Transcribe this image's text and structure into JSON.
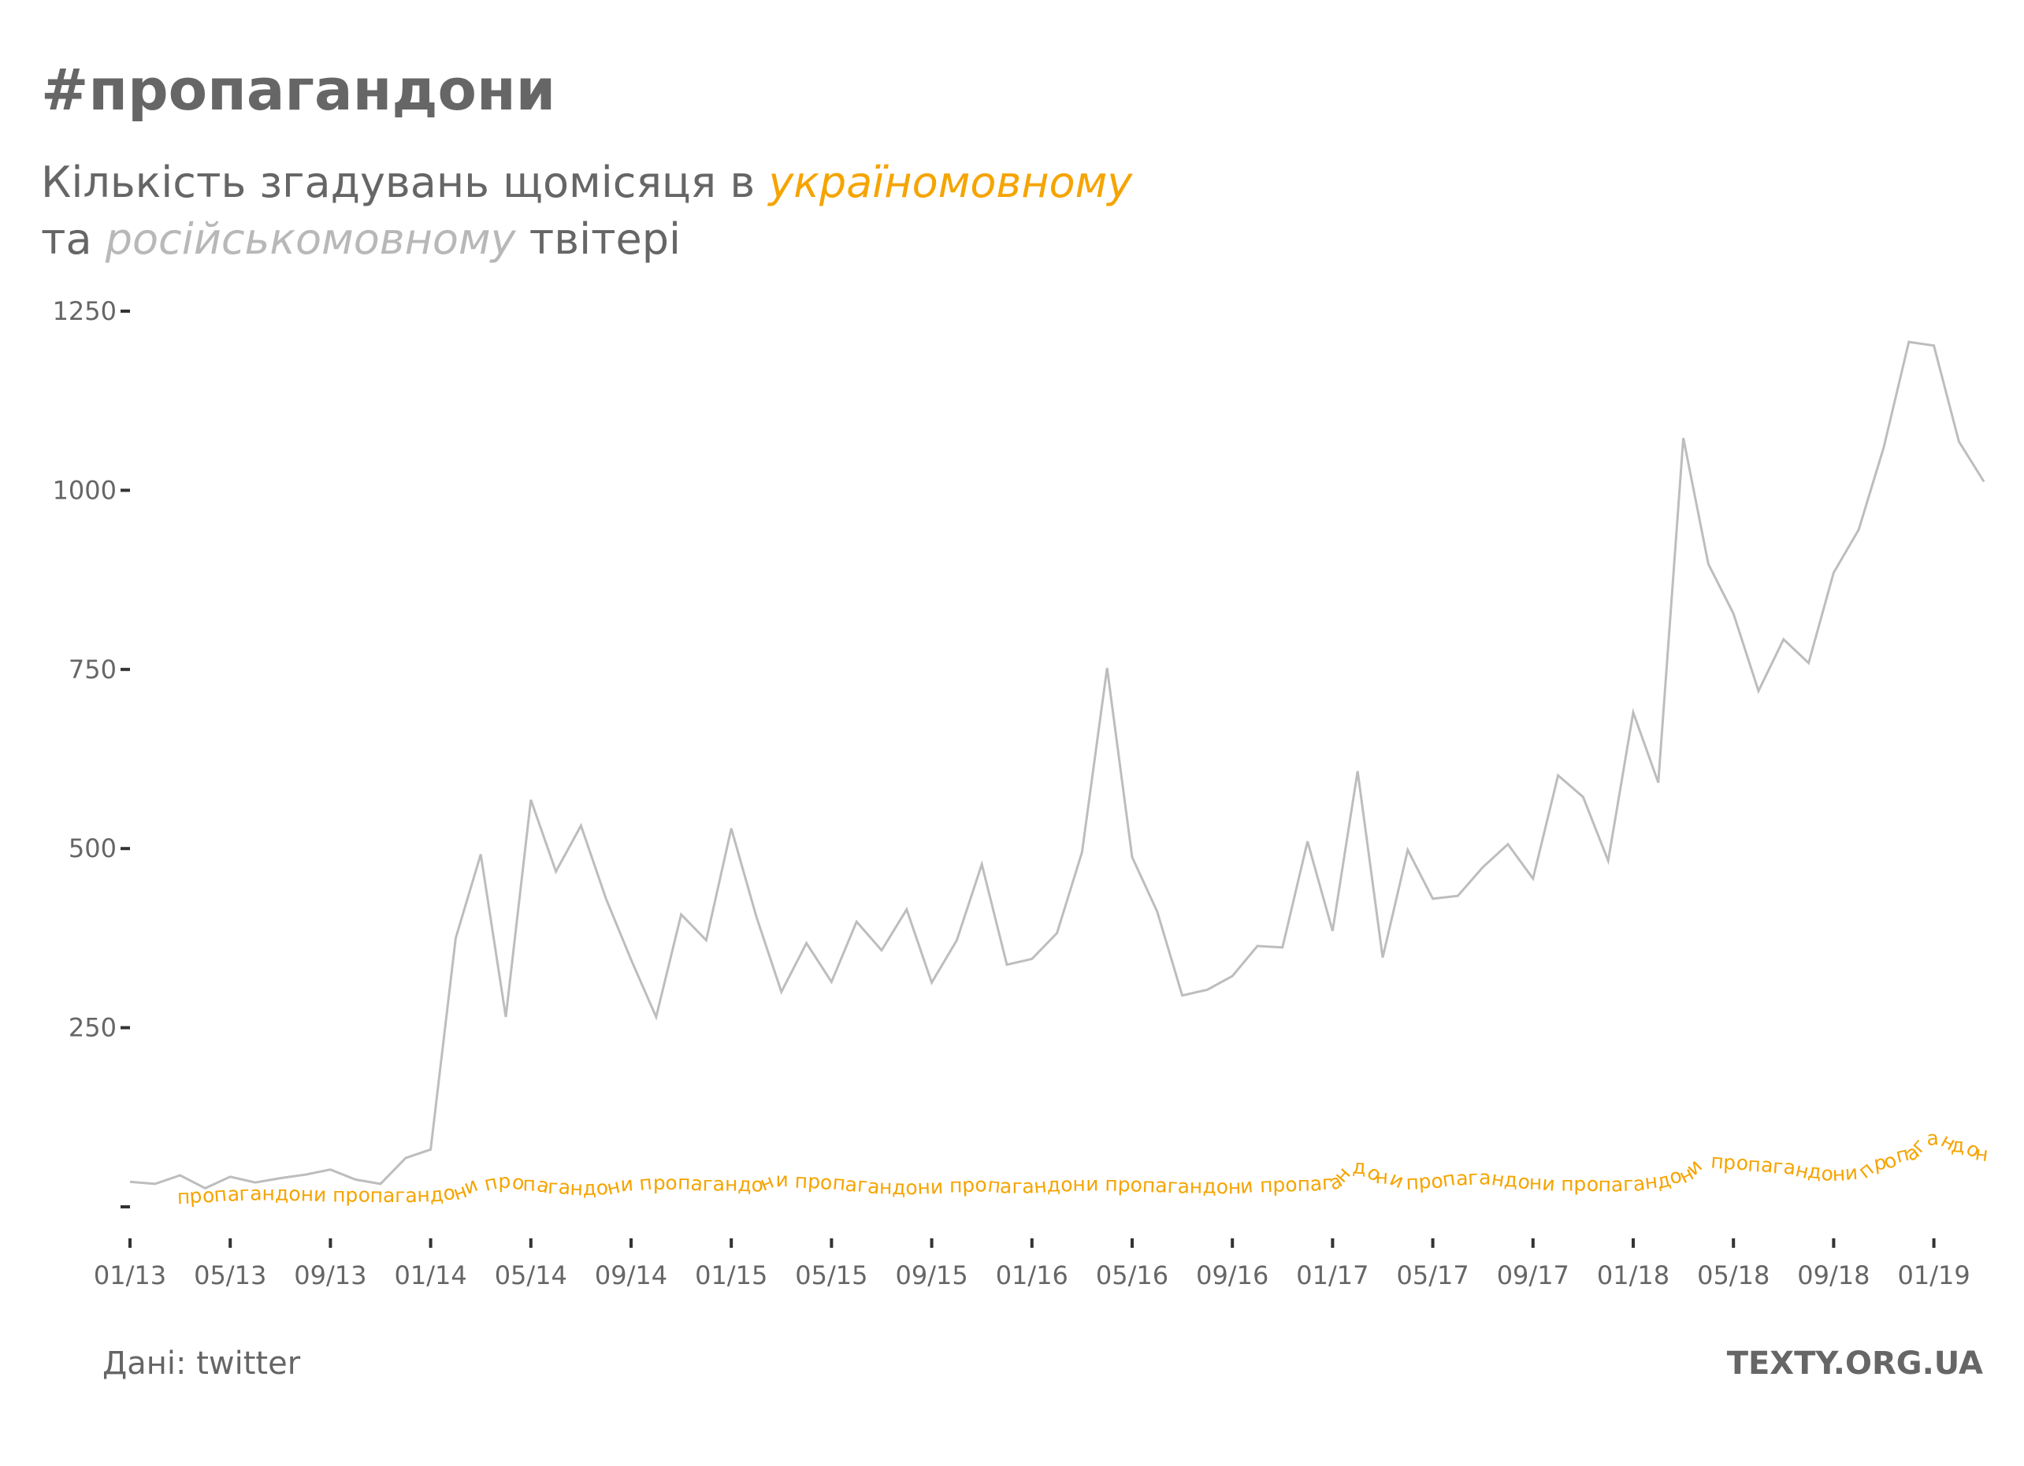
{
  "header": {
    "title": "#пропагандони",
    "subtitle_line1_prefix": "Кількість згадувань щомісяця в ",
    "subtitle_line1_highlight": "україномовному",
    "subtitle_line2_prefix": "та ",
    "subtitle_line2_highlight": "російськомовному",
    "subtitle_line2_suffix": " твітері"
  },
  "footer": {
    "source": "Дані: twitter",
    "brand": "TEXTY.ORG.UA"
  },
  "colors": {
    "ukrainian": "#f5a400",
    "russian": "#bdbdbd",
    "text": "#666666"
  },
  "chart_data": {
    "type": "line",
    "x_start": "2013-01",
    "x_end": "2019-04",
    "x_ticks": [
      "01/13",
      "05/13",
      "09/13",
      "01/14",
      "05/14",
      "09/14",
      "01/15",
      "05/15",
      "09/15",
      "01/16",
      "05/16",
      "09/16",
      "01/17",
      "05/17",
      "09/17",
      "01/18",
      "05/18",
      "09/18",
      "01/19"
    ],
    "y_ticks": [
      "250",
      "500",
      "750",
      "1000",
      "1250"
    ],
    "y_tick_values": [
      250,
      500,
      750,
      1000,
      1250
    ],
    "ylim": [
      -50,
      1250
    ],
    "series": [
      {
        "key": "russian",
        "values": [
          35,
          32,
          44,
          26,
          42,
          34,
          40,
          45,
          52,
          38,
          32,
          68,
          80,
          375,
          492,
          265,
          568,
          468,
          532,
          430,
          345,
          265,
          408,
          372,
          528,
          405,
          300,
          368,
          314,
          398,
          358,
          415,
          313,
          372,
          478,
          338,
          346,
          382,
          495,
          752,
          488,
          412,
          295,
          303,
          322,
          364,
          362,
          510,
          385,
          608,
          348,
          498,
          430,
          434,
          474,
          506,
          458,
          602,
          572,
          483,
          690,
          592,
          1073,
          897,
          828,
          720,
          792,
          759,
          885,
          945,
          1060,
          1207,
          1202,
          1068,
          1012
        ]
      },
      {
        "key": "ukrainian",
        "label_word": "пропагандони",
        "values": [
          0,
          0,
          0,
          2,
          4,
          5,
          5,
          4,
          3,
          3,
          2,
          2,
          3,
          6,
          18,
          22,
          18,
          14,
          12,
          13,
          18,
          20,
          20,
          18,
          18,
          17,
          24,
          22,
          20,
          17,
          14,
          13,
          14,
          16,
          17,
          15,
          15,
          17,
          18,
          18,
          17,
          16,
          15,
          15,
          14,
          16,
          17,
          18,
          20,
          42,
          28,
          20,
          22,
          26,
          27,
          24,
          20,
          18,
          18,
          17,
          18,
          22,
          30,
          50,
          48,
          45,
          42,
          36,
          32,
          34,
          48,
          60,
          82,
          72,
          60
        ]
      }
    ]
  }
}
